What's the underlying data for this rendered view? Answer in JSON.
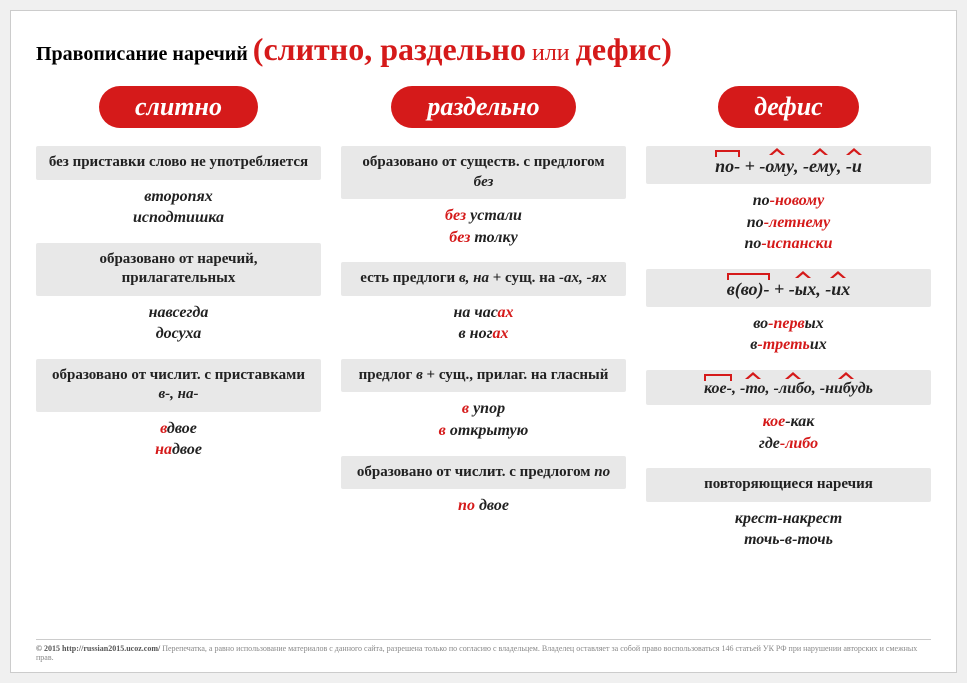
{
  "title": {
    "prefix": "Правописание наречий ",
    "open": "(",
    "w1": "слитно",
    "sep1": ", ",
    "w2": "раздельно",
    "sep2": " или ",
    "w3": "дефис",
    "close": ")"
  },
  "columns": {
    "c1": {
      "header": "слитно",
      "rules": [
        {
          "text": "без приставки слово не употребляется",
          "ex": [
            "второпях",
            "исподтишка"
          ]
        },
        {
          "text": "образовано от наречий, прилагательных",
          "ex": [
            "навсегда",
            "досуха"
          ]
        },
        {
          "text_parts": [
            "образовано от числит. с приставками ",
            "в-, на-"
          ],
          "ex_mix": [
            [
              "в",
              "двое"
            ],
            [
              "на",
              "двое"
            ]
          ]
        }
      ]
    },
    "c2": {
      "header": "раздельно",
      "rules": [
        {
          "text_parts": [
            "образовано от существ. с предлогом ",
            "без"
          ],
          "ex_mix": [
            [
              "без ",
              "устали"
            ],
            [
              "без ",
              "толку"
            ]
          ]
        },
        {
          "text_parts_3": [
            "есть предлоги ",
            "в, на",
            " + сущ. на ",
            "-ах, -ях"
          ],
          "ex_mix_suffix": [
            [
              "на час",
              "ах"
            ],
            [
              "в ног",
              "ах"
            ]
          ]
        },
        {
          "text_parts": [
            "предлог ",
            "в",
            " + сущ., прилаг. на гласный"
          ],
          "ex_mix": [
            [
              "в ",
              "упор"
            ],
            [
              "в ",
              "открытую"
            ]
          ]
        },
        {
          "text_parts": [
            "образовано от числит. с предлогом ",
            "по"
          ],
          "ex_mix": [
            [
              "по ",
              "двое"
            ]
          ]
        }
      ]
    },
    "c3": {
      "header": "дефис",
      "patterns": [
        {
          "bracket": "по-",
          "plus": " + ",
          "carets": [
            "-ому",
            "-ему",
            "-и"
          ],
          "ex": [
            [
              "по",
              "-новому"
            ],
            [
              "по",
              "-летнему"
            ],
            [
              "по",
              "-испански"
            ]
          ]
        },
        {
          "bracket": "в(во)-",
          "plus": " + ",
          "carets": [
            "-ых",
            "-их"
          ],
          "ex": [
            [
              "во",
              "-перв",
              "ых"
            ],
            [
              "в",
              "-треть",
              "их"
            ]
          ]
        },
        {
          "bracket": "кое-",
          "carets2": [
            "-то",
            "-либо",
            "-нибудь"
          ],
          "ex2": [
            [
              "кое",
              "-как"
            ],
            [
              "где",
              "-либо"
            ]
          ]
        }
      ],
      "repeat": {
        "label": "повторяющиеся наречия",
        "ex": [
          "крест-накрест",
          "точь-в-точь"
        ]
      }
    }
  },
  "footer": {
    "year": "© 2015",
    "url": "http://russian2015.ucoz.com/",
    "text": "Перепечатка, а равно использование материалов с данного сайта, разрешена только по согласию с владельцем. Владелец оставляет за собой право воспользоваться 146 статьей УК РФ при нарушении авторских и смежных прав."
  }
}
